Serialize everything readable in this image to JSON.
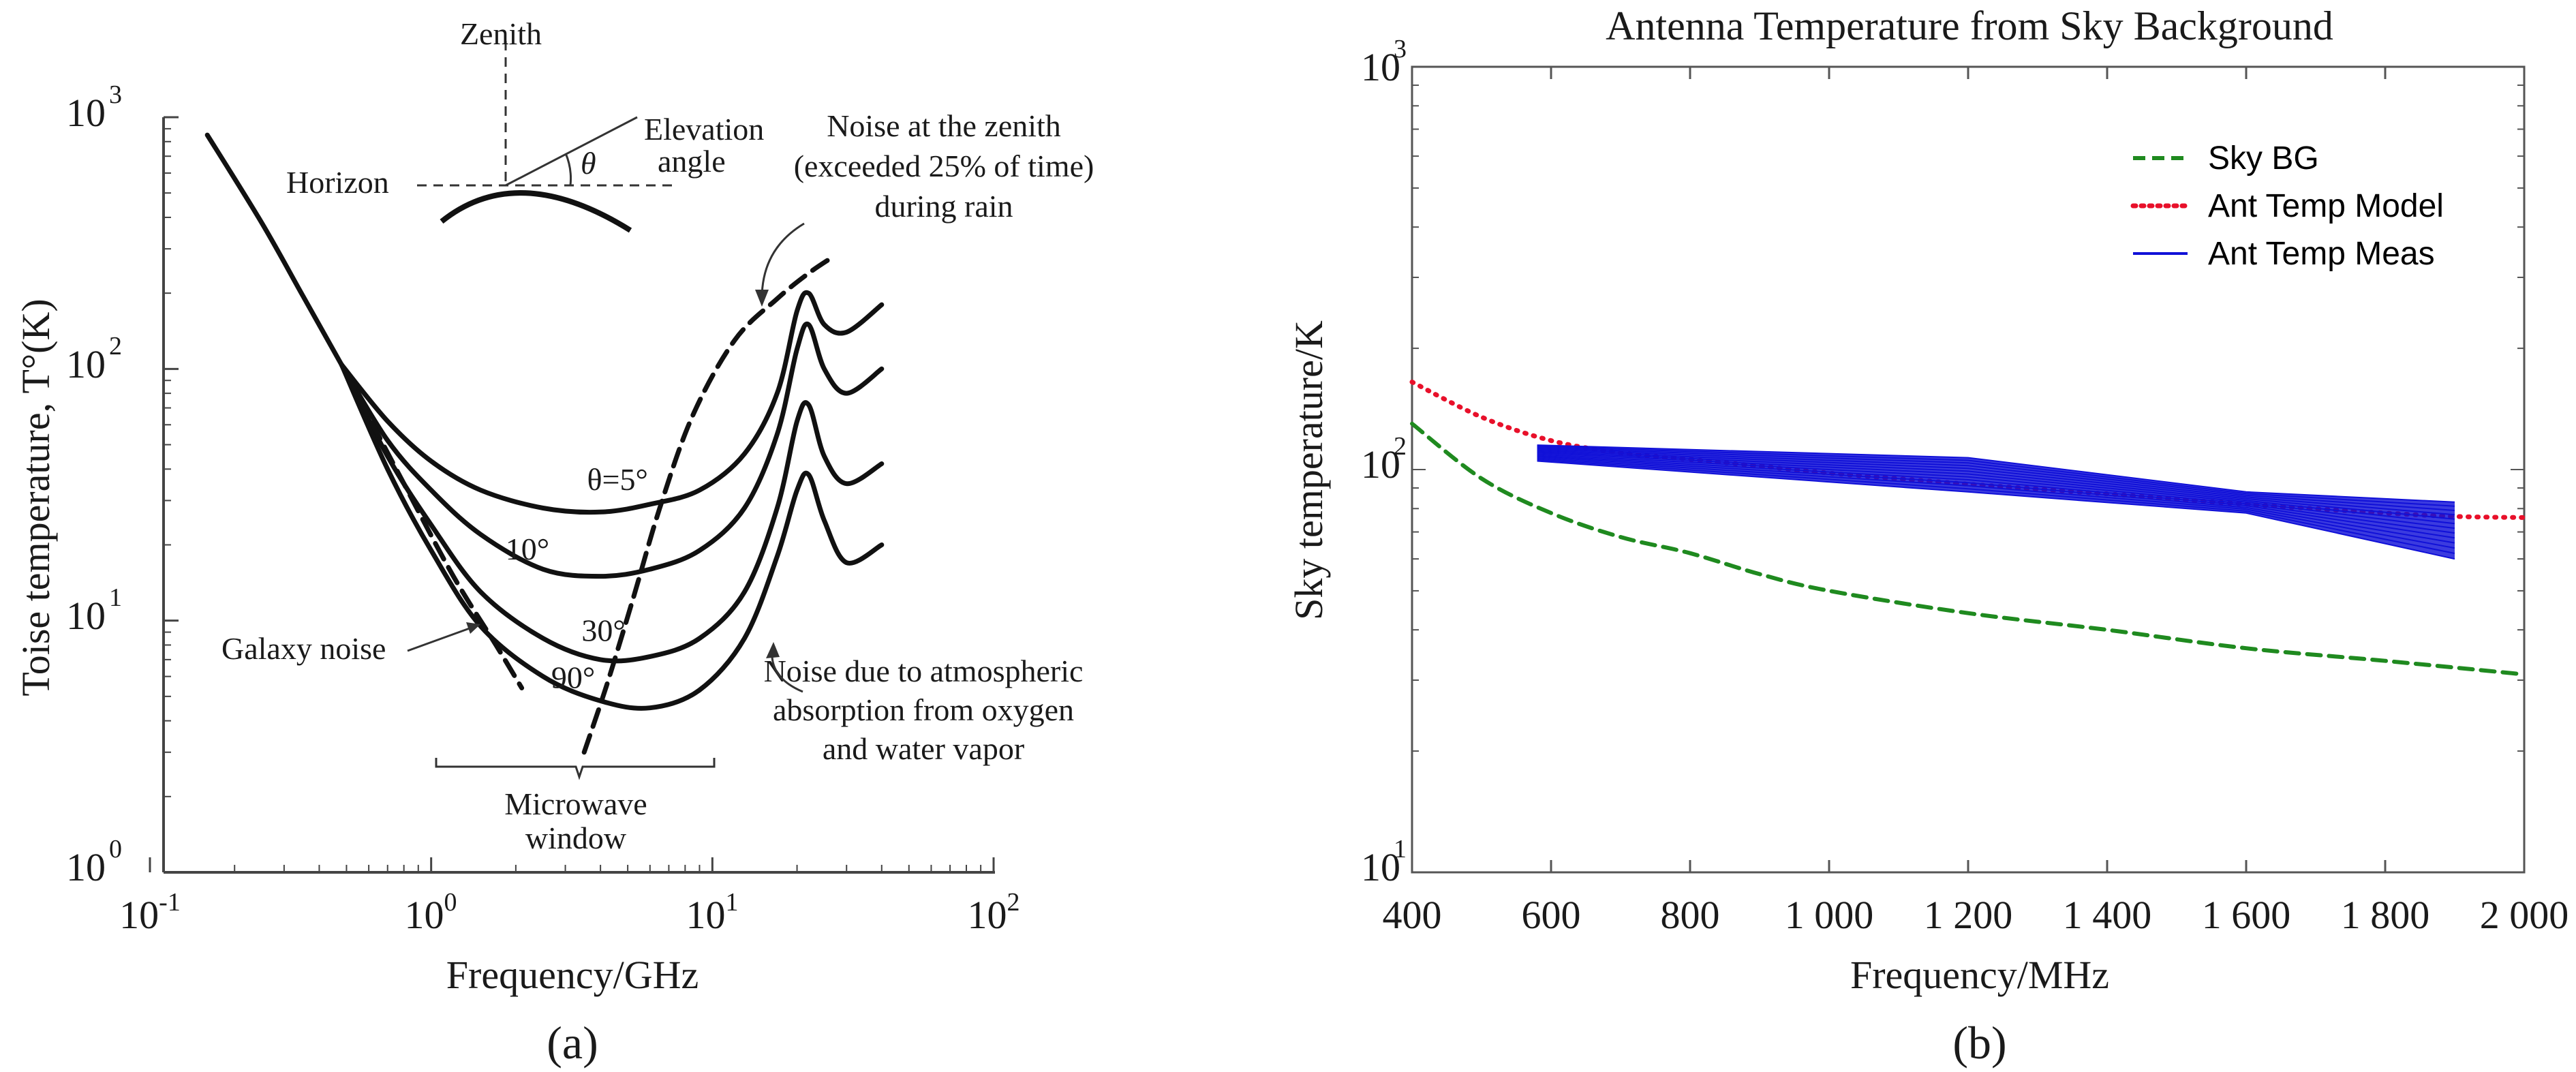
{
  "chart_data": [
    {
      "panel_label": "(a)",
      "type": "line",
      "title": "",
      "xlabel": "Frequency/GHz",
      "ylabel": "Toise temperature, T°(K)",
      "xscale": "log",
      "yscale": "log",
      "xlim": [
        0.1,
        100
      ],
      "ylim": [
        1,
        1000
      ],
      "xticks": [
        {
          "base": "10",
          "exp": "-1"
        },
        {
          "base": "10",
          "exp": "0"
        },
        {
          "base": "10",
          "exp": "1"
        },
        {
          "base": "10",
          "exp": "2"
        }
      ],
      "yticks": [
        {
          "base": "10",
          "exp": "0"
        },
        {
          "base": "10",
          "exp": "1"
        },
        {
          "base": "10",
          "exp": "2"
        },
        {
          "base": "10",
          "exp": "3"
        }
      ],
      "series": [
        {
          "name": "Galaxy noise (descending trunk)",
          "style": "solid",
          "x": [
            0.16,
            0.25,
            0.35,
            0.48
          ],
          "y": [
            850,
            380,
            195,
            104
          ]
        },
        {
          "name": "θ=5°",
          "style": "solid",
          "x": [
            0.48,
            0.7,
            1.0,
            1.5,
            2.5,
            4.0,
            6.0,
            9.0,
            13,
            17,
            20,
            22,
            25,
            30,
            40
          ],
          "y": [
            104,
            62,
            43,
            33,
            28,
            27,
            29,
            33,
            46,
            80,
            170,
            200,
            150,
            140,
            180
          ]
        },
        {
          "name": "10°",
          "style": "solid",
          "x": [
            0.48,
            0.7,
            1.0,
            1.5,
            2.5,
            4.0,
            6.0,
            9.0,
            13,
            17,
            20,
            22,
            25,
            30,
            40
          ],
          "y": [
            104,
            52,
            33,
            22,
            16,
            15,
            16,
            19,
            28,
            55,
            120,
            150,
            100,
            80,
            100
          ]
        },
        {
          "name": "30°",
          "style": "solid",
          "x": [
            0.48,
            0.7,
            1.0,
            1.5,
            2.5,
            4.0,
            6.0,
            9.0,
            13,
            17,
            20,
            22,
            25,
            30,
            40
          ],
          "y": [
            104,
            45,
            24,
            13,
            8.5,
            7,
            7.2,
            8.5,
            13,
            28,
            62,
            72,
            45,
            35,
            42
          ]
        },
        {
          "name": "90°",
          "style": "solid",
          "x": [
            0.48,
            0.7,
            1.0,
            1.5,
            2.5,
            4.0,
            6.0,
            9.0,
            13,
            17,
            20,
            22,
            25,
            30,
            40
          ],
          "y": [
            104,
            40,
            19,
            9.5,
            6,
            4.8,
            4.5,
            5.3,
            8.5,
            18,
            33,
            38,
            25,
            17,
            20
          ]
        },
        {
          "name": "Galaxy noise",
          "style": "dashed",
          "x": [
            0.5,
            0.8,
            1.2,
            1.7,
            2.1
          ],
          "y": [
            95,
            35,
            15,
            8,
            5.4
          ]
        },
        {
          "name": "Noise at the zenith (exceeded 25% of time) during rain",
          "style": "dashed",
          "x": [
            3.5,
            4.2,
            5.2,
            6.5,
            8.5,
            12,
            17,
            22,
            27
          ],
          "y": [
            3.0,
            5.5,
            12,
            28,
            65,
            130,
            190,
            240,
            280
          ]
        }
      ],
      "curve_labels": [
        {
          "text": "θ=5°",
          "x": 4.6,
          "y": 33
        },
        {
          "text": "10°",
          "x": 2.2,
          "y": 17.5
        },
        {
          "text": "30°",
          "x": 4.1,
          "y": 8.3
        },
        {
          "text": "90°",
          "x": 3.2,
          "y": 5.4
        }
      ],
      "annotations": {
        "zenith": "Zenith",
        "horizon": "Horizon",
        "elevation_1": "Elevation",
        "elevation_2": "angle",
        "theta": "θ",
        "galaxy_noise": "Galaxy noise",
        "zenith_rain_1": "Noise at the zenith",
        "zenith_rain_2": "(exceeded 25% of time)",
        "zenith_rain_3": "during rain",
        "atmos_1": "Noise due to atmospheric",
        "atmos_2": "absorption from oxygen",
        "atmos_3": "and water vapor",
        "window_1": "Microwave",
        "window_2": "window"
      }
    },
    {
      "panel_label": "(b)",
      "type": "line",
      "title": "Antenna Temperature from Sky Background",
      "xlabel": "Frequency/MHz",
      "ylabel": "Sky temperature/K",
      "xscale": "linear",
      "yscale": "log",
      "xlim": [
        400,
        2000
      ],
      "ylim": [
        10,
        1000
      ],
      "xticks": [
        400,
        600,
        800,
        1000,
        1200,
        1400,
        1600,
        1800,
        2000
      ],
      "xtick_labels": [
        "400",
        "600",
        "800",
        "1 000",
        "1 200",
        "1 400",
        "1 600",
        "1 800",
        "2 000"
      ],
      "yticks": [
        {
          "base": "10",
          "exp": "1"
        },
        {
          "base": "10",
          "exp": "2"
        },
        {
          "base": "10",
          "exp": "3"
        }
      ],
      "legend_position": "top-right",
      "legend": [
        {
          "label": "Sky BG",
          "color": "#1f8a1f",
          "style": "dashed"
        },
        {
          "label": "Ant Temp Model",
          "color": "#e8102a",
          "style": "dotted"
        },
        {
          "label": "Ant Temp Meas",
          "color": "#1010d8",
          "style": "solid"
        }
      ],
      "series": [
        {
          "name": "Sky BG",
          "color": "#1f8a1f",
          "style": "dashed",
          "x": [
            400,
            500,
            600,
            700,
            800,
            900,
            1000,
            1200,
            1400,
            1600,
            1800,
            2000
          ],
          "y": [
            130,
            95,
            78,
            68,
            62,
            55,
            50,
            44,
            40,
            36,
            33.5,
            31
          ]
        },
        {
          "name": "Ant Temp Model",
          "color": "#e8102a",
          "style": "dotted",
          "x": [
            400,
            500,
            600,
            700,
            800,
            900,
            1000,
            1200,
            1400,
            1600,
            1800,
            1900,
            2000
          ],
          "y": [
            165,
            135,
            118,
            110,
            106,
            102,
            98,
            92,
            87,
            82,
            78,
            76.5,
            76
          ]
        },
        {
          "name": "Ant Temp Meas",
          "color": "#1010d8",
          "style": "band",
          "x": [
            580,
            1200,
            1600,
            1900
          ],
          "y_upper": [
            115,
            107,
            88,
            83
          ],
          "y_lower": [
            105,
            88,
            78,
            60
          ]
        }
      ]
    }
  ]
}
